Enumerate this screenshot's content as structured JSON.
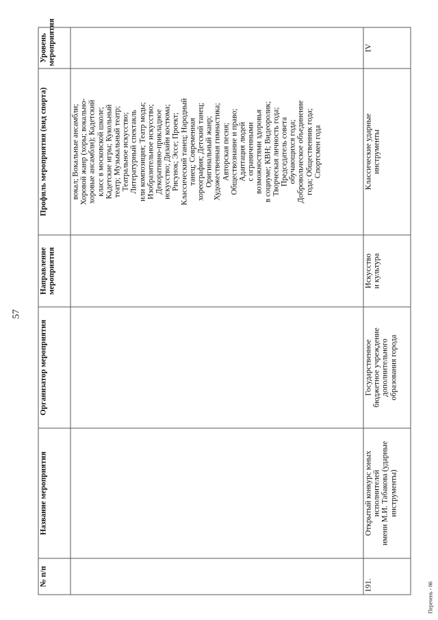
{
  "page_number": "57",
  "footer": "Перечень - 06",
  "table": {
    "headers": [
      "№ п/п",
      "Название мероприятия",
      "Организатор мероприятия",
      "Направление мероприятия",
      "Профиль мероприятия (вид спорта)",
      "Уровень мероприятия"
    ],
    "continuation_profile": [
      "вокал; Вокальные ансамбли;",
      "Хоровой жанр (хоры; вокально-",
      "хоровые ансамбли); Кадетский",
      "класс в московской школе;",
      "Кадетские игры; Кукольный",
      "театр; Музыкальный театр;",
      "Театральное искусство;",
      "Литературный спектакль",
      "или композиция; Театр моды;",
      "Изобразительное искусство;",
      "Декоративно-прикладное",
      "искусство; Дизайн костюма;",
      "Рисунок; Эссе; Проект;",
      "Классический танец; Народный",
      "танец; Современная",
      "хореография; Детский танец;",
      "Оригинальный жанр;",
      "Художественная гимнастика;",
      "Авторская песня;",
      "Обществознание и право;",
      "Адаптация людей",
      "с ограниченными",
      "возможностями здоровья",
      "в социуме; КВН; Видеоролик;",
      "Творческая личность года;",
      "Председатель совета",
      "обучающихся года;",
      "Добровольческое объединение",
      "года; Общественник года;",
      "Спортсмен года"
    ],
    "row": {
      "number": "191.",
      "name": [
        "Открытый конкурс юных",
        "исполнителей",
        "имени М.И. Табакова (ударные",
        "инструменты)"
      ],
      "organizer": [
        "Государственное",
        "бюджетное учреждение",
        "дополнительного",
        "образования города"
      ],
      "direction": [
        "Искусство",
        "и культура"
      ],
      "profile": [
        "Классические ударные",
        "инструменты"
      ],
      "level": "IV"
    }
  }
}
